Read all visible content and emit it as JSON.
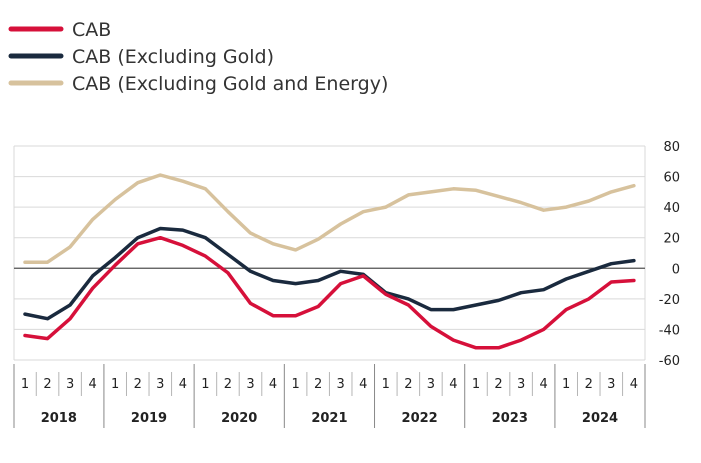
{
  "chart_data": {
    "type": "line",
    "title": "",
    "xlabel": "",
    "ylabel": "",
    "ylim": [
      -60,
      80
    ],
    "yticks": [
      80,
      60,
      40,
      20,
      0,
      -20,
      -40,
      -60
    ],
    "grid": "horizontal",
    "legend_position": "top-left",
    "years": [
      {
        "label": "2018",
        "quarters": [
          "1",
          "2",
          "3",
          "4"
        ]
      },
      {
        "label": "2019",
        "quarters": [
          "1",
          "2",
          "3",
          "4"
        ]
      },
      {
        "label": "2020",
        "quarters": [
          "1",
          "2",
          "3",
          "4"
        ]
      },
      {
        "label": "2021",
        "quarters": [
          "1",
          "2",
          "3",
          "4"
        ]
      },
      {
        "label": "2022",
        "quarters": [
          "1",
          "2",
          "3",
          "4"
        ]
      },
      {
        "label": "2023",
        "quarters": [
          "1",
          "2",
          "3",
          "4"
        ]
      },
      {
        "label": "2024",
        "quarters": [
          "1",
          "2",
          "3",
          "4"
        ]
      }
    ],
    "series": [
      {
        "name": "CAB",
        "color": "#d6103a",
        "values": [
          -44,
          -46,
          -33,
          -13,
          2,
          16,
          20,
          15,
          8,
          -3,
          -23,
          -31,
          -31,
          -25,
          -10,
          -5,
          -17,
          -24,
          -38,
          -47,
          -52,
          -52,
          -47,
          -40,
          -27,
          -20,
          -9,
          -8
        ]
      },
      {
        "name": "CAB (Excluding Gold)",
        "color": "#1a2a3e",
        "values": [
          -30,
          -33,
          -24,
          -5,
          7,
          20,
          26,
          25,
          20,
          9,
          -2,
          -8,
          -10,
          -8,
          -2,
          -4,
          -16,
          -20,
          -27,
          -27,
          -24,
          -21,
          -16,
          -14,
          -7,
          -2,
          3,
          5
        ]
      },
      {
        "name": "CAB (Excluding Gold and Energy)",
        "color": "#d7c29d",
        "values": [
          4,
          4,
          14,
          32,
          45,
          56,
          61,
          57,
          52,
          37,
          23,
          16,
          12,
          19,
          29,
          37,
          40,
          48,
          50,
          52,
          51,
          47,
          43,
          38,
          40,
          44,
          50,
          54
        ]
      }
    ]
  }
}
